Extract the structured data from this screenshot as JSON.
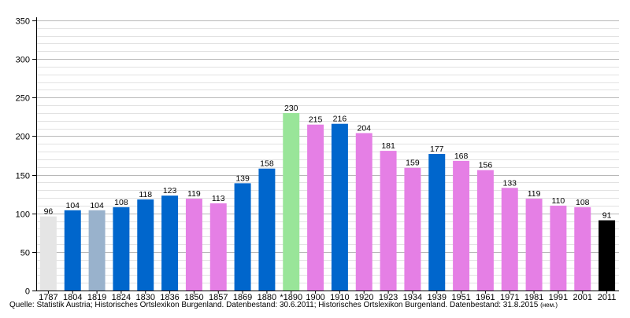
{
  "chart_data": {
    "type": "bar",
    "title": "",
    "xlabel": "",
    "ylabel": "",
    "ylim": [
      0,
      350
    ],
    "y_ticks": [
      "0",
      "50",
      "100",
      "150",
      "200",
      "250",
      "300",
      "350"
    ],
    "minor_gridlines": true,
    "categories": [
      "1787",
      "1804",
      "1819",
      "1824",
      "1830",
      "1836",
      "1850",
      "1857",
      "1869",
      "1880",
      "*1890",
      "1900",
      "1910",
      "1920",
      "1923",
      "1934",
      "1939",
      "1951",
      "1961",
      "1971",
      "1981",
      "1991",
      "2001",
      "2011"
    ],
    "values": [
      96,
      104,
      104,
      108,
      118,
      123,
      119,
      113,
      139,
      158,
      230,
      215,
      216,
      204,
      181,
      159,
      177,
      168,
      156,
      133,
      119,
      110,
      108,
      91
    ],
    "data_labels": [
      "96",
      "104",
      "104",
      "108",
      "118",
      "123",
      "119",
      "113",
      "139",
      "158",
      "230",
      "215",
      "216",
      "204",
      "181",
      "159",
      "177",
      "168",
      "156",
      "133",
      "119",
      "110",
      "108",
      "91"
    ],
    "bar_colors": [
      "#e5e5e5",
      "#0066cc",
      "#99b2cc",
      "#0066cc",
      "#0066cc",
      "#0066cc",
      "#e57fe5",
      "#e57fe5",
      "#0066cc",
      "#0066cc",
      "#99e599",
      "#e57fe5",
      "#0066cc",
      "#e57fe5",
      "#e57fe5",
      "#e57fe5",
      "#0066cc",
      "#e57fe5",
      "#e57fe5",
      "#e57fe5",
      "#e57fe5",
      "#e57fe5",
      "#e57fe5",
      "#000000"
    ]
  },
  "source": {
    "text": "Quelle: Statistik Austria; Historisches Ortslexikon Burgenland. Datenbestand: 30.6.2011; Historisches Ortslexikon Burgenland. Datenbestand: 31.8.2015",
    "note": "(нем.)"
  }
}
